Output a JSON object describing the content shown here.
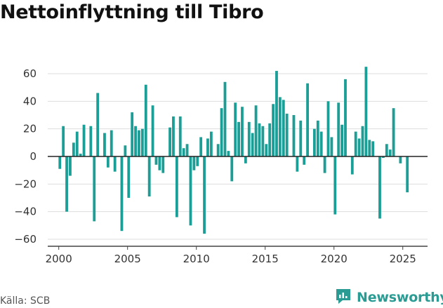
{
  "title": "Nettoinflyttning till Tibro",
  "source": "Källa: SCB",
  "brand": {
    "name": "Newsworthy",
    "icon": "newsworthy-logo-icon",
    "color": "#2a9c93"
  },
  "chart_data": {
    "type": "bar",
    "title": "Nettoinflyttning till Tibro",
    "xlabel": "",
    "ylabel": "",
    "x_ticks": [
      "2000",
      "2005",
      "2010",
      "2015",
      "2020",
      "2025"
    ],
    "y_ticks": [
      "60",
      "40",
      "20",
      "0",
      "−20",
      "−40",
      "−60"
    ],
    "ylim": [
      -60,
      60
    ],
    "xlim": [
      1999.2,
      2026.8
    ],
    "grid": true,
    "bar_color": "#1a9e96",
    "series": [
      {
        "x": [
          2000.08,
          2000.33,
          2000.58,
          2000.83,
          2001.08,
          2001.33,
          2001.58,
          2001.83,
          2002.08,
          2002.33,
          2002.58,
          2002.83,
          2003.08,
          2003.33,
          2003.58,
          2003.83,
          2004.08,
          2004.33,
          2004.58,
          2004.83,
          2005.08,
          2005.33,
          2005.58,
          2005.83,
          2006.08,
          2006.33,
          2006.58,
          2006.83,
          2007.08,
          2007.33,
          2007.58,
          2007.83,
          2008.08,
          2008.33,
          2008.58,
          2008.83,
          2009.08,
          2009.33,
          2009.58,
          2009.83,
          2010.08,
          2010.33,
          2010.58,
          2010.83,
          2011.08,
          2011.33,
          2011.58,
          2011.83,
          2012.08,
          2012.33,
          2012.58,
          2012.83,
          2013.08,
          2013.33,
          2013.58,
          2013.83,
          2014.08,
          2014.33,
          2014.58,
          2014.83,
          2015.08,
          2015.33,
          2015.58,
          2015.83,
          2016.08,
          2016.33,
          2016.58,
          2016.83,
          2017.08,
          2017.33,
          2017.58,
          2017.83,
          2018.08,
          2018.33,
          2018.58,
          2018.83,
          2019.08,
          2019.33,
          2019.58,
          2019.83,
          2020.08,
          2020.33,
          2020.58,
          2020.83,
          2021.08,
          2021.33,
          2021.58,
          2021.83,
          2022.08,
          2022.33,
          2022.58,
          2022.83,
          2023.08,
          2023.33,
          2023.58,
          2023.83,
          2024.08,
          2024.33,
          2024.58,
          2024.83,
          2025.08,
          2025.33
        ],
        "values": [
          -9,
          22,
          -40,
          -14,
          10,
          18,
          2,
          23,
          0,
          22,
          -47,
          46,
          0,
          17,
          -8,
          19,
          -11,
          0,
          -54,
          8,
          -30,
          32,
          22,
          19,
          20,
          52,
          -29,
          37,
          -6,
          -10,
          -12,
          0,
          21,
          29,
          -44,
          29,
          6,
          9,
          -50,
          -10,
          -7,
          14,
          -56,
          13,
          18,
          0,
          9,
          35,
          54,
          4,
          -18,
          39,
          25,
          36,
          -5,
          25,
          17,
          37,
          24,
          22,
          9,
          24,
          38,
          62,
          43,
          41,
          31,
          0,
          30,
          -11,
          26,
          -6,
          53,
          0,
          20,
          26,
          18,
          -12,
          40,
          14,
          -42,
          39,
          23,
          56,
          0,
          -13,
          18,
          13,
          22,
          65,
          12,
          11,
          0,
          -45,
          -1,
          9,
          5,
          35,
          0,
          -5,
          0,
          -26
        ]
      }
    ]
  }
}
